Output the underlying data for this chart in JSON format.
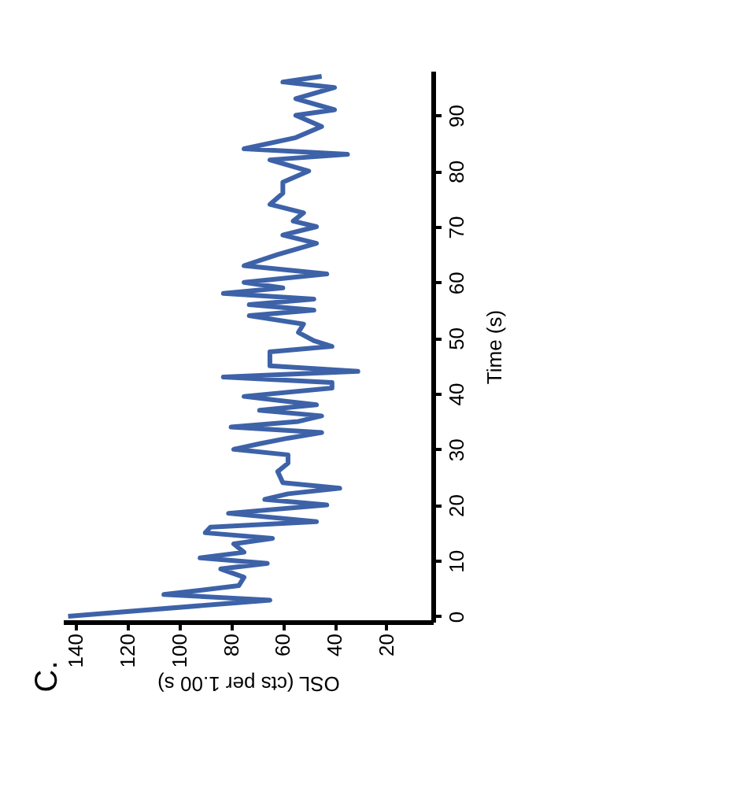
{
  "chart_data": {
    "type": "line",
    "orientation": "horizontal",
    "ylabel": "Time (s)",
    "xlabel": "OSL (cts per 1.00 s)",
    "annotations": [
      "C."
    ],
    "x": [
      0,
      2.9,
      3.9,
      5.5,
      7,
      8.5,
      9.5,
      10.5,
      11.5,
      13,
      14,
      15,
      16,
      17,
      18.5,
      20,
      21,
      22,
      23,
      24,
      26,
      27.5,
      29,
      30,
      31,
      32,
      33,
      34,
      35,
      36,
      37,
      38,
      39.5,
      41,
      42,
      43,
      44,
      45,
      47.5,
      48.5,
      49.5,
      51,
      52.5,
      54,
      55,
      56,
      57,
      58,
      59,
      60,
      61.5,
      63,
      65,
      67,
      68.5,
      70,
      71,
      72.5,
      74,
      76,
      78,
      80,
      82,
      83,
      84,
      86,
      88,
      90,
      91,
      93,
      95,
      96,
      97
    ],
    "series": [
      {
        "color": "#3d62a8",
        "values": [
          143,
          65,
          106,
          77,
          75,
          84,
          66,
          92,
          75,
          79,
          64,
          90,
          88,
          47,
          81,
          43,
          67,
          58,
          38,
          60,
          62,
          58,
          58,
          79,
          69,
          58,
          45,
          80,
          54,
          45,
          69,
          47,
          75,
          41,
          41,
          83,
          31,
          65,
          65,
          41,
          48,
          54,
          52,
          73,
          48,
          73,
          48,
          83,
          60,
          75,
          43,
          75,
          62,
          47,
          60,
          47,
          56,
          52,
          65,
          60,
          60,
          50,
          65,
          35,
          75,
          55,
          45,
          55,
          40,
          55,
          40,
          60,
          45
        ]
      }
    ],
    "ylim": [
      -1,
      98
    ],
    "yticks": [
      0,
      10,
      20,
      30,
      40,
      50,
      60,
      70,
      80,
      90
    ],
    "xlim": [
      145,
      2
    ],
    "xticks": [
      140,
      120,
      100,
      80,
      60,
      40,
      20
    ],
    "grid": false,
    "legend": false,
    "marker": "none",
    "line_style": "solid"
  }
}
